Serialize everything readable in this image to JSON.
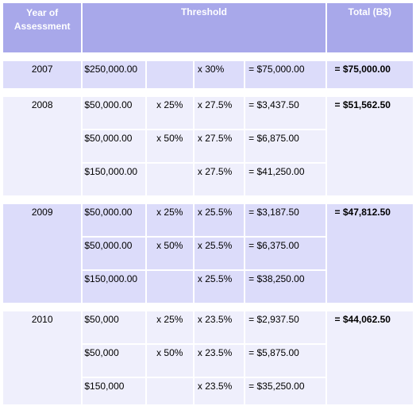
{
  "headers": {
    "year": "Year of Assessment",
    "threshold": "Threshold",
    "total": "Total (B$)"
  },
  "groups": [
    {
      "year": "2007",
      "total": "= $75,000.00",
      "rows": [
        {
          "amount": "$250,000.00",
          "pct": "",
          "rate": "x 30%",
          "result": "= $75,000.00"
        }
      ]
    },
    {
      "year": "2008",
      "total": "= $51,562.50",
      "rows": [
        {
          "amount": "$50,000.00",
          "pct": "x 25%",
          "rate": "x 27.5%",
          "result": "= $3,437.50"
        },
        {
          "amount": "$50,000.00",
          "pct": "x 50%",
          "rate": "x 27.5%",
          "result": "= $6,875.00"
        },
        {
          "amount": "$150,000.00",
          "pct": "",
          "rate": "x 27.5%",
          "result": "= $41,250.00"
        }
      ]
    },
    {
      "year": "2009",
      "total": "= $47,812.50",
      "rows": [
        {
          "amount": "$50,000.00",
          "pct": "x 25%",
          "rate": "x 25.5%",
          "result": "= $3,187.50"
        },
        {
          "amount": "$50,000.00",
          "pct": "x 50%",
          "rate": "x 25.5%",
          "result": "= $6,375.00"
        },
        {
          "amount": "$150,000.00",
          "pct": "",
          "rate": "x 25.5%",
          "result": "= $38,250.00"
        }
      ]
    },
    {
      "year": "2010",
      "total": "= $44,062.50",
      "rows": [
        {
          "amount": "$50,000",
          "pct": "x 25%",
          "rate": "x 23.5%",
          "result": "= $2,937.50"
        },
        {
          "amount": "$50,000",
          "pct": "x 50%",
          "rate": "x 23.5%",
          "result": "= $5,875.00"
        },
        {
          "amount": "$150,000",
          "pct": "",
          "rate": "x 23.5%",
          "result": "= $35,250.00"
        }
      ]
    }
  ]
}
